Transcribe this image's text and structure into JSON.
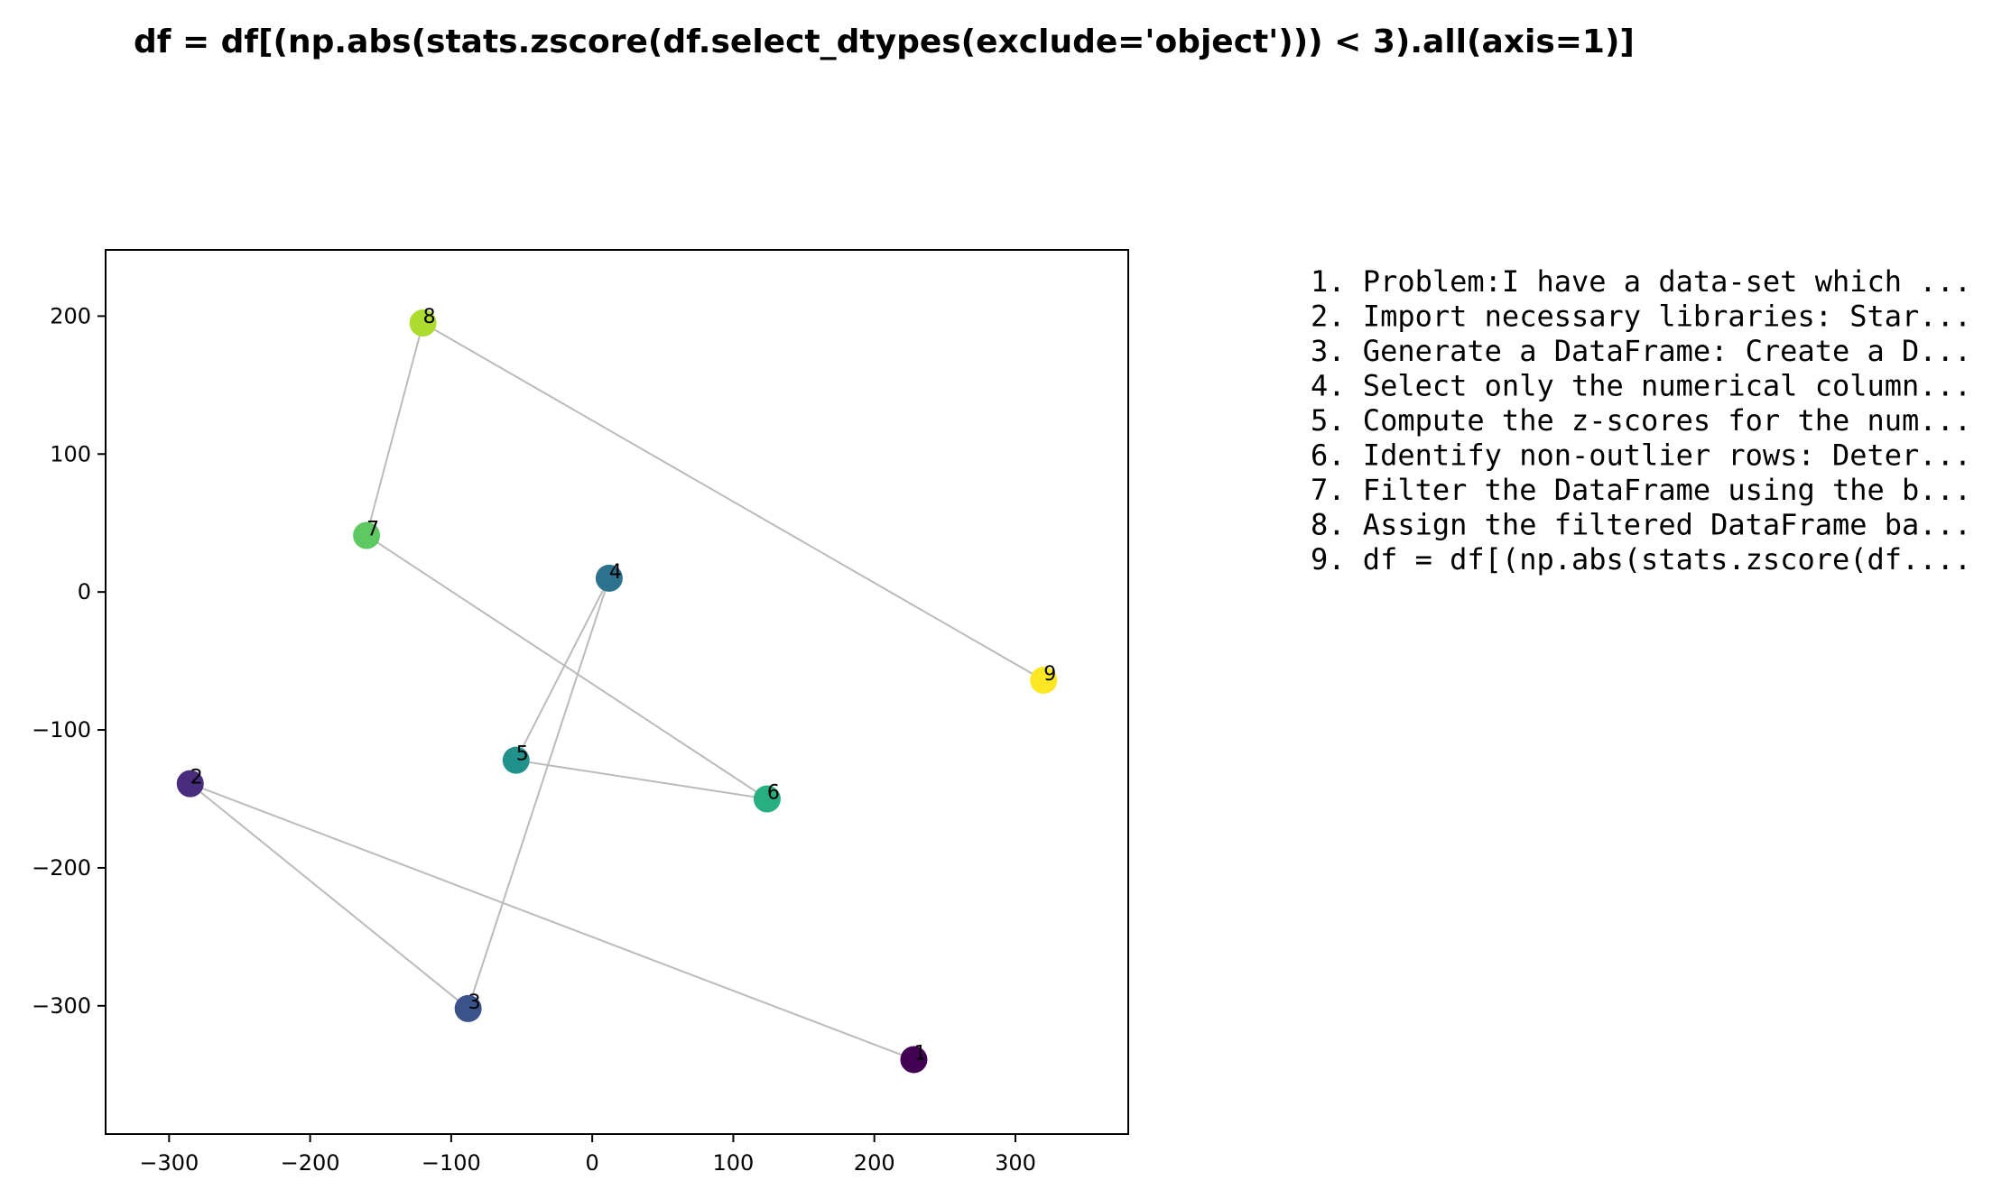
{
  "chart_data": {
    "type": "scatter",
    "title": "df = df[(np.abs(stats.zscore(df.select_dtypes(exclude='object'))) < 3).all(axis=1)]",
    "xlabel": "",
    "ylabel": "",
    "xlim": [
      -345,
      380
    ],
    "ylim": [
      -393,
      248
    ],
    "xticks": [
      -300,
      -200,
      -100,
      0,
      100,
      200,
      300
    ],
    "yticks": [
      -300,
      -200,
      -100,
      0,
      100,
      200
    ],
    "xtick_labels": [
      "−300",
      "−200",
      "−100",
      "0",
      "100",
      "200",
      "300"
    ],
    "ytick_labels": [
      "−300",
      "−200",
      "−100",
      "0",
      "100",
      "200"
    ],
    "grid": false,
    "connect_points_in_order": true,
    "line_color": "#bbbbbb",
    "points": [
      {
        "label": "1",
        "x": 228,
        "y": -339,
        "color": "#440154"
      },
      {
        "label": "2",
        "x": -285,
        "y": -139,
        "color": "#472d7b"
      },
      {
        "label": "3",
        "x": -88,
        "y": -302,
        "color": "#3b528b"
      },
      {
        "label": "4",
        "x": 12,
        "y": 10,
        "color": "#2c728e"
      },
      {
        "label": "5",
        "x": -54,
        "y": -122,
        "color": "#21918c"
      },
      {
        "label": "6",
        "x": 124,
        "y": -150,
        "color": "#28ae80"
      },
      {
        "label": "7",
        "x": -160,
        "y": 41,
        "color": "#5ec962"
      },
      {
        "label": "8",
        "x": -120,
        "y": 195,
        "color": "#addc30"
      },
      {
        "label": "9",
        "x": 320,
        "y": -64,
        "color": "#fde725"
      }
    ]
  },
  "steps": [
    "1. Problem:I have a data-set which ...",
    "2. Import necessary libraries: Star...",
    "3. Generate a DataFrame: Create a D...",
    "4. Select only the numerical column...",
    "5. Compute the z-scores for the num...",
    "6. Identify non-outlier rows: Deter...",
    "7. Filter the DataFrame using the b...",
    "8. Assign the filtered DataFrame ba...",
    "9. df = df[(np.abs(stats.zscore(df...."
  ]
}
